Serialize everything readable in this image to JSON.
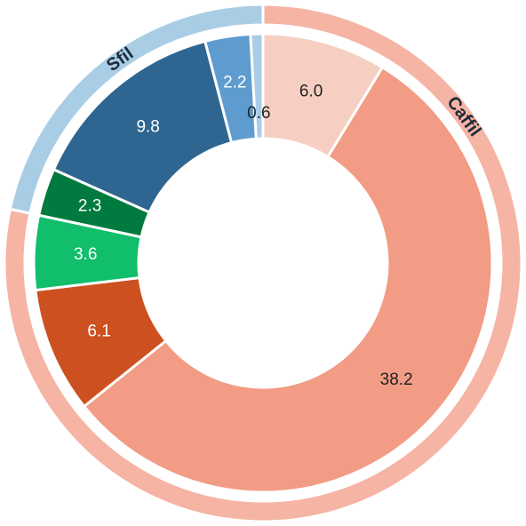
{
  "chart_data": {
    "type": "sunburst",
    "values": [
      6.0,
      38.2,
      6.1,
      3.6,
      2.3,
      9.8,
      2.2,
      0.6
    ],
    "value_labels": [
      "6.0",
      "38.2",
      "6.1",
      "3.6",
      "2.3",
      "9.8",
      "2.2",
      "0.6"
    ],
    "colors": [
      "#f6cfc2",
      "#f29c85",
      "#cd5120",
      "#10be6b",
      "#007a3e",
      "#2e6691",
      "#5e9ccf",
      "#aacde6"
    ],
    "groups": [
      {
        "name": "Caffil",
        "value": 53.9,
        "color": "#f5b4a4"
      },
      {
        "name": "Sfil",
        "value": 14.9,
        "color": "#aacde6"
      }
    ]
  }
}
